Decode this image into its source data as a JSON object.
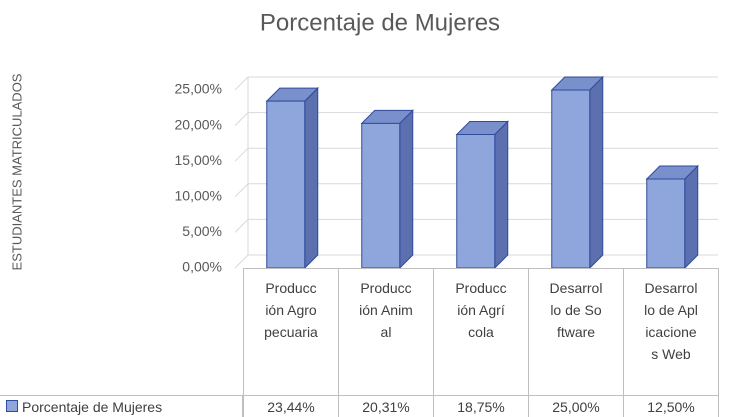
{
  "chart_data": {
    "type": "bar3d",
    "title": "Porcentaje de Mujeres",
    "ylabel": "ESTUDIANTES MATRICULADOS",
    "categories": [
      "Producción Agropecuaria",
      "Producción Animal",
      "Producción Agrícola",
      "Desarrollo de Software",
      "Desarrollo de Aplicaciones Web"
    ],
    "series": [
      {
        "name": "Porcentaje de Mujeres",
        "color": "#8ea6dc",
        "values": [
          23.44,
          20.31,
          18.75,
          25,
          12.5
        ],
        "value_labels": [
          "23,44%",
          "20,31%",
          "18,75%",
          "25,00%",
          "12,50%"
        ]
      }
    ],
    "ylim": [
      0,
      25
    ],
    "yticks": [
      {
        "value": 0,
        "label": "0,00%"
      },
      {
        "value": 5,
        "label": "5,00%"
      },
      {
        "value": 10,
        "label": "10,00%"
      },
      {
        "value": 15,
        "label": "15,00%"
      },
      {
        "value": 20,
        "label": "20,00%"
      },
      {
        "value": 25,
        "label": "25,00%"
      }
    ],
    "grid": true,
    "legend": "bottom-left"
  }
}
